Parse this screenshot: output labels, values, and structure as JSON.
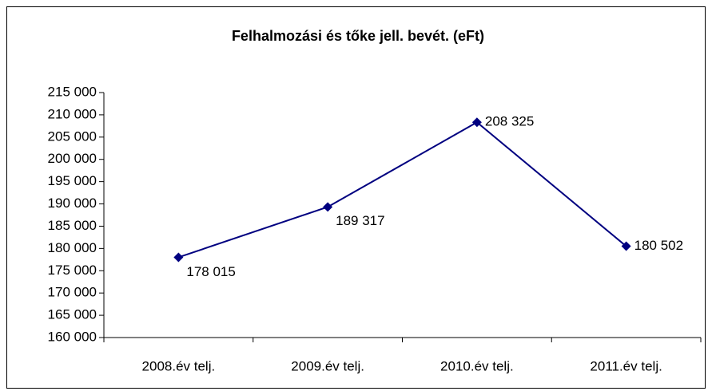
{
  "chart_data": {
    "type": "line",
    "title": "Felhalmozási és tőke jell. bevét. (eFt)",
    "categories": [
      "2008.év telj.",
      "2009.év telj.",
      "2010.év telj.",
      "2011.év telj."
    ],
    "series": [
      {
        "name": "Felhalmozási és tőke jell. bevét. (eFt)",
        "color": "#000080",
        "values": [
          178015,
          189317,
          208325,
          180502
        ],
        "value_labels": [
          "178 015",
          "189 317",
          "208 325",
          "180 502"
        ]
      }
    ],
    "ylim": [
      160000,
      215000
    ],
    "yticks": [
      {
        "value": 160000,
        "label": "160 000"
      },
      {
        "value": 165000,
        "label": "165 000"
      },
      {
        "value": 170000,
        "label": "170 000"
      },
      {
        "value": 175000,
        "label": "175 000"
      },
      {
        "value": 180000,
        "label": "180 000"
      },
      {
        "value": 185000,
        "label": "185 000"
      },
      {
        "value": 190000,
        "label": "190 000"
      },
      {
        "value": 195000,
        "label": "195 000"
      },
      {
        "value": 200000,
        "label": "200 000"
      },
      {
        "value": 205000,
        "label": "205 000"
      },
      {
        "value": 210000,
        "label": "210 000"
      },
      {
        "value": 215000,
        "label": "215 000"
      }
    ],
    "grid": false
  }
}
